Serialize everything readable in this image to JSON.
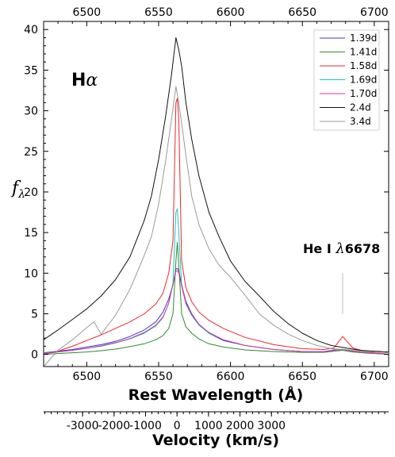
{
  "chart_data": {
    "type": "line",
    "ylabel": "f",
    "ylabel_sub": "λ",
    "xlabel": "Rest Wavelength (Å)",
    "xlabel2": "Velocity (km/s)",
    "panel_label": "Hα",
    "panel_label_main": "H",
    "panel_label_greek": "α",
    "annotation": {
      "text_main": "He I ",
      "text_greek": "λ",
      "text_num": "6678",
      "x": 6678
    },
    "xlim": [
      6470,
      6710
    ],
    "ylim": [
      -1.5,
      41
    ],
    "x_ticks": [
      "6500",
      "6550",
      "6600",
      "6650",
      "6700"
    ],
    "x_tick_values": [
      6500,
      6550,
      6600,
      6650,
      6700
    ],
    "y_ticks": [
      "0",
      "5",
      "10",
      "15",
      "20",
      "25",
      "30",
      "35",
      "40"
    ],
    "y_tick_values": [
      0,
      5,
      10,
      15,
      20,
      25,
      30,
      35,
      40
    ],
    "velocity_ticks": [
      "-3000",
      "-2000",
      "-1000",
      "0",
      "1000",
      "2000",
      "3000"
    ],
    "velocity_tick_values": [
      -3000,
      -2000,
      -1000,
      0,
      1000,
      2000,
      3000
    ],
    "legend_position": "top-right",
    "grid": false,
    "series": [
      {
        "name": "1.39d",
        "color": "#3b3bd6",
        "x": [
          6470,
          6480,
          6490,
          6500,
          6510,
          6520,
          6530,
          6540,
          6548,
          6553,
          6557,
          6560,
          6562,
          6563,
          6564,
          6566,
          6569,
          6573,
          6578,
          6585,
          6595,
          6610,
          6630,
          6650,
          6665,
          6672,
          6678,
          6685,
          6695,
          6705,
          6710
        ],
        "y": [
          0.2,
          0.4,
          0.6,
          0.9,
          1.2,
          1.6,
          2.2,
          3.0,
          4.0,
          5.2,
          6.8,
          8.6,
          10.5,
          10.6,
          10.3,
          8.6,
          6.5,
          5.0,
          3.7,
          2.6,
          1.7,
          1.1,
          0.6,
          0.35,
          0.35,
          0.55,
          0.6,
          0.4,
          0.2,
          0.1,
          0.0
        ]
      },
      {
        "name": "1.41d",
        "color": "#2e8b2e",
        "x": [
          6470,
          6480,
          6490,
          6500,
          6510,
          6520,
          6530,
          6540,
          6548,
          6553,
          6557,
          6560,
          6562,
          6563,
          6564,
          6566,
          6569,
          6573,
          6578,
          6585,
          6595,
          6610,
          6630,
          6650,
          6665,
          6672,
          6678,
          6685,
          6695,
          6705,
          6710
        ],
        "y": [
          0.0,
          0.1,
          0.2,
          0.3,
          0.45,
          0.65,
          0.95,
          1.3,
          1.8,
          2.3,
          3.2,
          5.0,
          11.5,
          13.8,
          11.0,
          5.0,
          3.4,
          2.6,
          1.9,
          1.3,
          0.9,
          0.55,
          0.35,
          0.25,
          0.25,
          0.4,
          0.5,
          0.3,
          0.15,
          0.05,
          0.0
        ]
      },
      {
        "name": "1.58d",
        "color": "#e8282d",
        "x": [
          6470,
          6480,
          6490,
          6500,
          6510,
          6520,
          6530,
          6540,
          6548,
          6553,
          6557,
          6560,
          6562,
          6563,
          6564,
          6566,
          6569,
          6573,
          6578,
          6585,
          6595,
          6610,
          6630,
          6650,
          6665,
          6672,
          6678,
          6685,
          6695,
          6705,
          6710
        ],
        "y": [
          0.0,
          0.4,
          1.0,
          1.7,
          2.4,
          3.2,
          4.0,
          5.0,
          6.2,
          7.5,
          10.0,
          14.0,
          31.0,
          31.5,
          29.0,
          11.5,
          8.2,
          6.5,
          5.2,
          4.2,
          3.2,
          2.1,
          1.2,
          0.7,
          0.6,
          0.8,
          2.2,
          0.8,
          0.3,
          0.1,
          0.0
        ]
      },
      {
        "name": "1.69d",
        "color": "#19c2c2",
        "x": [
          6470,
          6480,
          6490,
          6500,
          6510,
          6520,
          6530,
          6540,
          6548,
          6553,
          6557,
          6560,
          6562,
          6563,
          6564,
          6566,
          6569,
          6573,
          6578,
          6585,
          6595,
          6610,
          6630,
          6650,
          6665,
          6672,
          6678,
          6685,
          6695,
          6705,
          6710
        ],
        "y": [
          0.15,
          0.3,
          0.5,
          0.75,
          1.0,
          1.4,
          1.9,
          2.6,
          3.5,
          4.5,
          6.3,
          8.8,
          17.5,
          17.9,
          15.0,
          8.5,
          6.2,
          4.8,
          3.6,
          2.6,
          1.8,
          1.1,
          0.6,
          0.35,
          0.3,
          0.5,
          0.6,
          0.4,
          0.2,
          0.1,
          0.0
        ]
      },
      {
        "name": "1.70d",
        "color": "#e0349d",
        "x": [
          6470,
          6480,
          6490,
          6500,
          6510,
          6520,
          6530,
          6540,
          6548,
          6553,
          6557,
          6560,
          6562,
          6563,
          6564,
          6566,
          6569,
          6573,
          6578,
          6585,
          6595,
          6610,
          6630,
          6650,
          6665,
          6672,
          6678,
          6685,
          6695,
          6705,
          6710
        ],
        "y": [
          0.1,
          0.3,
          0.5,
          0.75,
          1.05,
          1.45,
          1.95,
          2.7,
          3.6,
          4.6,
          6.3,
          8.6,
          10.2,
          10.3,
          10.0,
          8.4,
          6.3,
          4.9,
          3.7,
          2.7,
          1.8,
          1.1,
          0.6,
          0.35,
          0.3,
          0.5,
          0.6,
          0.4,
          0.2,
          0.1,
          0.0
        ]
      },
      {
        "name": "2.4d",
        "color": "#111111",
        "x": [
          6470,
          6480,
          6490,
          6500,
          6510,
          6520,
          6530,
          6540,
          6545,
          6550,
          6555,
          6559,
          6562,
          6564,
          6566,
          6569,
          6573,
          6578,
          6585,
          6592,
          6600,
          6610,
          6620,
          6630,
          6640,
          6650,
          6660,
          6670,
          6680,
          6690,
          6700,
          6710
        ],
        "y": [
          1.8,
          3.0,
          4.3,
          5.6,
          7.2,
          9.2,
          12.0,
          16.5,
          19.5,
          24.0,
          29.5,
          34.5,
          39.0,
          37.5,
          35.5,
          31.0,
          26.5,
          22.0,
          17.5,
          14.5,
          11.5,
          9.0,
          7.2,
          5.3,
          3.8,
          2.6,
          1.7,
          1.1,
          0.8,
          0.5,
          0.4,
          0.3
        ]
      },
      {
        "name": "3.4d",
        "color": "#9a9a9a",
        "x": [
          6470,
          6480,
          6490,
          6500,
          6505,
          6510,
          6520,
          6530,
          6540,
          6545,
          6550,
          6555,
          6559,
          6562,
          6564,
          6566,
          6569,
          6573,
          6578,
          6585,
          6592,
          6600,
          6610,
          6620,
          6630,
          6640,
          6650,
          6660,
          6670,
          6680,
          6690,
          6700,
          6710
        ],
        "y": [
          -1.5,
          0.5,
          1.8,
          3.3,
          4.0,
          2.5,
          4.8,
          8.0,
          12.2,
          14.5,
          18.5,
          24.0,
          29.0,
          33.0,
          31.0,
          28.5,
          24.5,
          19.5,
          16.0,
          13.0,
          11.0,
          9.5,
          7.3,
          5.0,
          3.6,
          2.5,
          1.7,
          1.1,
          0.7,
          0.6,
          0.4,
          0.3,
          0.2
        ]
      }
    ]
  }
}
